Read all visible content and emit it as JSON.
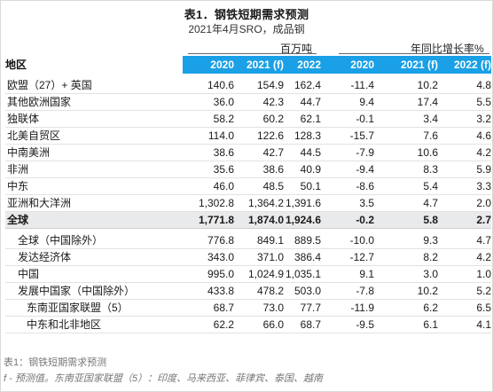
{
  "title": "表1．钢铁短期需求预测",
  "subtitle": "2021年4月SRO，成品钢",
  "unit_left": "百万吨",
  "unit_right": "年同比增长率%",
  "region_header": "地区",
  "columns": [
    "2020",
    "2021 (f)",
    "2022 (f)",
    "2020",
    "2021 (f)",
    "2022 (f)"
  ],
  "rows": [
    {
      "label": "欧盟（27）+ 英国",
      "values": [
        "140.6",
        "154.9",
        "162.4",
        "-11.4",
        "10.2",
        "4.8"
      ]
    },
    {
      "label": "其他欧洲国家",
      "values": [
        "36.0",
        "42.3",
        "44.7",
        "9.4",
        "17.4",
        "5.5"
      ]
    },
    {
      "label": "独联体",
      "values": [
        "58.2",
        "60.2",
        "62.1",
        "-0.1",
        "3.4",
        "3.2"
      ]
    },
    {
      "label": "北美自贸区",
      "values": [
        "114.0",
        "122.6",
        "128.3",
        "-15.7",
        "7.6",
        "4.6"
      ]
    },
    {
      "label": "中南美洲",
      "values": [
        "38.6",
        "42.7",
        "44.5",
        "-7.9",
        "10.6",
        "4.2"
      ]
    },
    {
      "label": "非洲",
      "values": [
        "35.6",
        "38.6",
        "40.9",
        "-9.4",
        "8.3",
        "5.9"
      ]
    },
    {
      "label": "中东",
      "values": [
        "46.0",
        "48.5",
        "50.1",
        "-8.6",
        "5.4",
        "3.3"
      ]
    },
    {
      "label": "亚洲和大洋洲",
      "values": [
        "1,302.8",
        "1,364.2",
        "1,391.6",
        "3.5",
        "4.7",
        "2.0"
      ]
    },
    {
      "label": "全球",
      "values": [
        "1,771.8",
        "1,874.0",
        "1,924.6",
        "-0.2",
        "5.8",
        "2.7"
      ]
    },
    {
      "label": "全球（中国除外）",
      "values": [
        "776.8",
        "849.1",
        "889.5",
        "-10.0",
        "9.3",
        "4.7"
      ]
    },
    {
      "label": "发达经济体",
      "values": [
        "343.0",
        "371.0",
        "386.4",
        "-12.7",
        "8.2",
        "4.2"
      ]
    },
    {
      "label": "中国",
      "values": [
        "995.0",
        "1,024.9",
        "1,035.1",
        "9.1",
        "3.0",
        "1.0"
      ]
    },
    {
      "label": "发展中国家（中国除外）",
      "values": [
        "433.8",
        "478.2",
        "503.0",
        "-7.8",
        "10.2",
        "5.2"
      ]
    },
    {
      "label": "东南亚国家联盟（5）",
      "values": [
        "68.7",
        "73.0",
        "77.7",
        "-11.9",
        "6.2",
        "6.5"
      ]
    },
    {
      "label": "中东和北非地区",
      "values": [
        "62.2",
        "66.0",
        "68.7",
        "-9.5",
        "6.1",
        "4.1"
      ]
    }
  ],
  "caption": "表1：钢铁短期需求预测",
  "footnote": "f - 预测值。东南亚国家联盟（5）：印度、马来西亚、菲律宾、泰国、越南",
  "colors": {
    "header_band": "#1aa0e6",
    "total_row": "#e9eaec"
  }
}
